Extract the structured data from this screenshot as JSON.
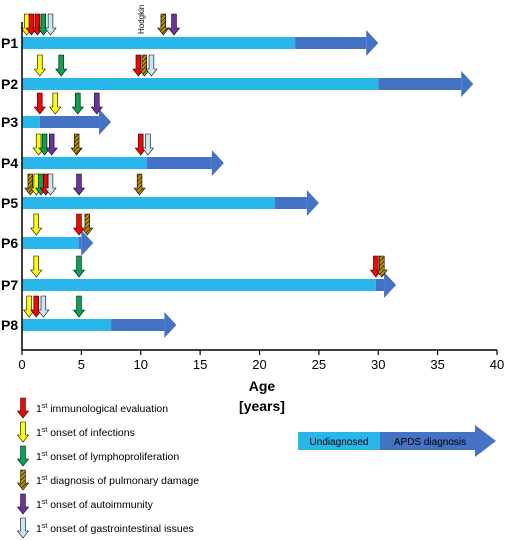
{
  "chart_data": {
    "type": "timeline",
    "xlabel": "Age",
    "xunit": "[years]",
    "xlim": [
      0,
      40
    ],
    "xticks": [
      0,
      5,
      10,
      15,
      20,
      25,
      30,
      35,
      40
    ],
    "annotation": {
      "text": "Hodgkin",
      "x": 10.0,
      "patient": "P1"
    },
    "colors": {
      "undiagnosed": "#29b6ea",
      "diagnosis": "#4472c4",
      "immunological_evaluation": "#ff0000",
      "infections": "#ffff00",
      "lymphoproliferation": "#00a651",
      "pulmonary_damage": "#bf9000",
      "autoimmunity": "#7030a0",
      "gastrointestinal": "#c5e8f2"
    },
    "legend": [
      {
        "key": "immunological_evaluation",
        "pre": "1",
        "sup": "st",
        "post": " immunological evaluation"
      },
      {
        "key": "infections",
        "pre": "1",
        "sup": "st",
        "post": " onset of infections"
      },
      {
        "key": "lymphoproliferation",
        "pre": "1",
        "sup": "st",
        "post": " onset of lymphoproliferation"
      },
      {
        "key": "pulmonary_damage",
        "pre": "1",
        "sup": "st",
        "post": " diagnosis of pulmonary damage"
      },
      {
        "key": "autoimmunity",
        "pre": "1",
        "sup": "st",
        "post": " onset of autoimmunity"
      },
      {
        "key": "gastrointestinal",
        "pre": "1",
        "sup": "st",
        "post": " onset of gastrointestinal issues"
      }
    ],
    "phase_legend": {
      "undiagnosed": "Undiagnosed",
      "diagnosis": "APDS diagnosis"
    },
    "patients": [
      {
        "name": "P1",
        "diagnosis_age": 23.0,
        "end_age": 30.0,
        "events": [
          {
            "type": "infections",
            "age": 0.4
          },
          {
            "type": "immunological_evaluation",
            "age": 0.8
          },
          {
            "type": "immunological_evaluation",
            "age": 1.3
          },
          {
            "type": "lymphoproliferation",
            "age": 1.8
          },
          {
            "type": "gastrointestinal",
            "age": 2.4
          },
          {
            "type": "pulmonary_damage",
            "age": 11.9
          },
          {
            "type": "autoimmunity",
            "age": 12.8
          }
        ]
      },
      {
        "name": "P2",
        "diagnosis_age": 30.0,
        "end_age": 38.0,
        "events": [
          {
            "type": "infections",
            "age": 1.5
          },
          {
            "type": "lymphoproliferation",
            "age": 3.3
          },
          {
            "type": "immunological_evaluation",
            "age": 9.8
          },
          {
            "type": "pulmonary_damage",
            "age": 10.3
          },
          {
            "type": "gastrointestinal",
            "age": 10.9
          }
        ]
      },
      {
        "name": "P3",
        "diagnosis_age": 1.5,
        "end_age": 7.5,
        "events": [
          {
            "type": "immunological_evaluation",
            "age": 1.5
          },
          {
            "type": "infections",
            "age": 2.8
          },
          {
            "type": "lymphoproliferation",
            "age": 4.7
          },
          {
            "type": "autoimmunity",
            "age": 6.3
          }
        ]
      },
      {
        "name": "P4",
        "diagnosis_age": 10.5,
        "end_age": 17.0,
        "events": [
          {
            "type": "infections",
            "age": 1.4
          },
          {
            "type": "lymphoproliferation",
            "age": 1.9
          },
          {
            "type": "autoimmunity",
            "age": 2.5
          },
          {
            "type": "pulmonary_damage",
            "age": 4.6
          },
          {
            "type": "immunological_evaluation",
            "age": 10.0
          },
          {
            "type": "gastrointestinal",
            "age": 10.6
          }
        ]
      },
      {
        "name": "P5",
        "diagnosis_age": 21.3,
        "end_age": 25.0,
        "events": [
          {
            "type": "pulmonary_damage",
            "age": 0.7
          },
          {
            "type": "infections",
            "age": 1.2
          },
          {
            "type": "lymphoproliferation",
            "age": 1.6
          },
          {
            "type": "immunological_evaluation",
            "age": 2.0
          },
          {
            "type": "gastrointestinal",
            "age": 2.4
          },
          {
            "type": "autoimmunity",
            "age": 4.8
          },
          {
            "type": "pulmonary_damage",
            "age": 9.9
          }
        ]
      },
      {
        "name": "P6",
        "diagnosis_age": 4.8,
        "end_age": 6.0,
        "events": [
          {
            "type": "infections",
            "age": 1.2
          },
          {
            "type": "immunological_evaluation",
            "age": 4.8
          },
          {
            "type": "pulmonary_damage",
            "age": 5.5
          }
        ]
      },
      {
        "name": "P7",
        "diagnosis_age": 29.8,
        "end_age": 31.5,
        "events": [
          {
            "type": "infections",
            "age": 1.2
          },
          {
            "type": "lymphoproliferation",
            "age": 4.8
          },
          {
            "type": "immunological_evaluation",
            "age": 29.8
          },
          {
            "type": "pulmonary_damage",
            "age": 30.3
          }
        ]
      },
      {
        "name": "P8",
        "diagnosis_age": 7.5,
        "end_age": 13.0,
        "events": [
          {
            "type": "infections",
            "age": 0.6
          },
          {
            "type": "immunological_evaluation",
            "age": 1.2
          },
          {
            "type": "gastrointestinal",
            "age": 1.8
          },
          {
            "type": "lymphoproliferation",
            "age": 4.8
          }
        ]
      }
    ]
  }
}
